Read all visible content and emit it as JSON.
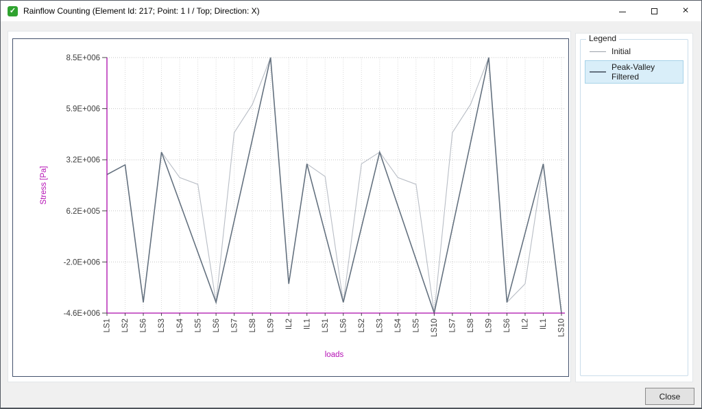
{
  "window": {
    "title": "Rainflow Counting (Element Id: 217; Point: 1 I / Top; Direction: X)",
    "minimize_glyph": "",
    "maximize_glyph": "",
    "close_glyph": "×",
    "icon_check": "✓"
  },
  "legend_panel": {
    "title": "Legend",
    "items": [
      {
        "label": "Initial",
        "selected": false,
        "swatch_color": "#9aa1a9",
        "swatch_weight": 1
      },
      {
        "label": "Peak-Valley Filtered",
        "selected": true,
        "swatch_color": "#64717f",
        "swatch_weight": 2
      }
    ]
  },
  "footer": {
    "close_label": "Close"
  },
  "chart_data": {
    "type": "line",
    "title": "",
    "xlabel": "loads",
    "ylabel": "Stress [Pa]",
    "axis_color": "#ab09ab",
    "axis_title_color": "#b511b5",
    "tick_label_color": "#3d3d3d",
    "tick_mark_color": "#444444",
    "grid": true,
    "legend_position": "right-panel",
    "ylim": [
      -4600000,
      8500000
    ],
    "y_ticks": [
      {
        "label": "8.5E+006",
        "value": 8500000
      },
      {
        "label": "5.9E+006",
        "value": 5880000
      },
      {
        "label": "3.2E+006",
        "value": 3260000
      },
      {
        "label": "6.2E+005",
        "value": 640000
      },
      {
        "label": "-2.0E+006",
        "value": -1980000
      },
      {
        "label": "-4.6E+006",
        "value": -4600000
      }
    ],
    "categories": [
      "LS1",
      "LS2",
      "LS6",
      "LS3",
      "LS4",
      "LS5",
      "LS6",
      "LS7",
      "LS8",
      "LS9",
      "IL2",
      "IL1",
      "LS1",
      "LS6",
      "LS2",
      "LS3",
      "LS4",
      "LS5",
      "LS10",
      "LS7",
      "LS8",
      "LS9",
      "LS6",
      "IL2",
      "IL1",
      "LS10"
    ],
    "series": [
      {
        "name": "Initial",
        "color": "#b8bdc5",
        "width": 1.1,
        "values": [
          2500000,
          3000000,
          -4050000,
          3650000,
          2350000,
          2000000,
          -4050000,
          4650000,
          6100000,
          8500000,
          -3100000,
          3050000,
          2400000,
          -4050000,
          3050000,
          3650000,
          2350000,
          2000000,
          -4600000,
          4650000,
          6100000,
          8500000,
          -4050000,
          -3100000,
          3050000,
          -4600000
        ]
      },
      {
        "name": "Peak-Valley Filtered",
        "color": "#64717f",
        "width": 1.6,
        "values": [
          2500000,
          3000000,
          -4050000,
          3650000,
          null,
          null,
          -4050000,
          null,
          null,
          8500000,
          -3100000,
          3050000,
          null,
          -4050000,
          null,
          3650000,
          null,
          null,
          -4600000,
          null,
          null,
          8500000,
          -4050000,
          null,
          3050000,
          -4600000
        ]
      }
    ]
  }
}
